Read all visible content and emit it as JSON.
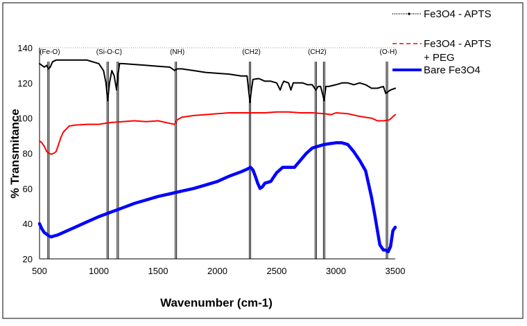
{
  "chart_data": {
    "type": "line",
    "title": "",
    "xlabel": "Wavenumber (cm-1)",
    "ylabel": "% Transmitance",
    "xlim": [
      500,
      3500
    ],
    "ylim": [
      20,
      140
    ],
    "x_ticks": [
      "500",
      "1000",
      "1500",
      "2000",
      "2500",
      "3000",
      "3500"
    ],
    "y_ticks": [
      "20",
      "40",
      "60",
      "80",
      "100",
      "120",
      "140"
    ],
    "grid": false,
    "legend_position": "top-right",
    "series": [
      {
        "name": "Fe3O4 - APTS",
        "color": "#000000",
        "style": "dotted-thin",
        "x": [
          500,
          520,
          540,
          560,
          575,
          590,
          610,
          640,
          700,
          800,
          900,
          1000,
          1040,
          1060,
          1075,
          1090,
          1110,
          1130,
          1140,
          1150,
          1160,
          1175,
          1200,
          1300,
          1400,
          1500,
          1600,
          1640,
          1660,
          1700,
          1800,
          1900,
          2000,
          2100,
          2200,
          2250,
          2265,
          2275,
          2285,
          2300,
          2350,
          2400,
          2450,
          2500,
          2530,
          2545,
          2560,
          2600,
          2620,
          2640,
          2680,
          2720,
          2760,
          2800,
          2830,
          2850,
          2870,
          2890,
          2900,
          2915,
          2940,
          3000,
          3050,
          3100,
          3150,
          3200,
          3250,
          3300,
          3350,
          3400,
          3420,
          3440,
          3460,
          3500
        ],
        "y": [
          131,
          130,
          129,
          130,
          128,
          129,
          132,
          133,
          133,
          133,
          133,
          131,
          127,
          120,
          110,
          120,
          127,
          124,
          120,
          116,
          124,
          131,
          131,
          130.5,
          130,
          129.5,
          129,
          127,
          128,
          128,
          127,
          126,
          125.5,
          125,
          124,
          124,
          115,
          109,
          115,
          122,
          122.5,
          121,
          121,
          120,
          116,
          119,
          121,
          120,
          116,
          120,
          120,
          120,
          119,
          119,
          116,
          118,
          118,
          113,
          110,
          118,
          118,
          119,
          120,
          120,
          119,
          120,
          119,
          117,
          117,
          118,
          114,
          115,
          116,
          117
        ]
      },
      {
        "name": "Fe3O4 - APTS + PEG",
        "color": "#ff0000",
        "style": "solid",
        "x": [
          500,
          520,
          540,
          560,
          580,
          600,
          620,
          640,
          660,
          680,
          700,
          750,
          800,
          900,
          1000,
          1100,
          1200,
          1300,
          1400,
          1500,
          1600,
          1640,
          1660,
          1700,
          1800,
          1900,
          2000,
          2100,
          2200,
          2300,
          2400,
          2500,
          2600,
          2700,
          2800,
          2900,
          2960,
          3000,
          3100,
          3200,
          3300,
          3350,
          3400,
          3450,
          3500
        ],
        "y": [
          87,
          86,
          84,
          81,
          80,
          79.5,
          80,
          81,
          85,
          89,
          92,
          95.5,
          96,
          96.5,
          96.5,
          97.5,
          98,
          98.5,
          98,
          98.5,
          97,
          96.5,
          99,
          100.5,
          101.5,
          102,
          102.5,
          103,
          103,
          103,
          103,
          103.5,
          103.5,
          103,
          103,
          102.5,
          102,
          103,
          102.5,
          101,
          100,
          98.5,
          98.5,
          99,
          102
        ]
      },
      {
        "name": "Bare Fe3O4",
        "color": "#0000ff",
        "style": "solid-thick",
        "x": [
          500,
          520,
          540,
          560,
          580,
          600,
          620,
          650,
          700,
          800,
          900,
          1000,
          1100,
          1200,
          1300,
          1400,
          1500,
          1600,
          1700,
          1800,
          1900,
          2000,
          2100,
          2200,
          2250,
          2280,
          2300,
          2320,
          2340,
          2360,
          2380,
          2400,
          2450,
          2500,
          2550,
          2600,
          2650,
          2700,
          2750,
          2800,
          2850,
          2900,
          2950,
          3000,
          3050,
          3100,
          3150,
          3200,
          3250,
          3300,
          3330,
          3350,
          3370,
          3400,
          3420,
          3440,
          3460,
          3480,
          3500
        ],
        "y": [
          40,
          37,
          35,
          34,
          33,
          32.5,
          33,
          33.5,
          35,
          38,
          41,
          44,
          46.5,
          49,
          51.5,
          53.5,
          55.5,
          57,
          58.5,
          60,
          62,
          64,
          67,
          69.5,
          71,
          72,
          70.5,
          67,
          63,
          60,
          61,
          63,
          64,
          69,
          72,
          72,
          72,
          76,
          80,
          83,
          84,
          85,
          85.5,
          86,
          86,
          85,
          81,
          76,
          70,
          55,
          44,
          36,
          28,
          25,
          25,
          24,
          27,
          36,
          38
        ]
      }
    ],
    "annotations": [
      {
        "label": "(Fe-O)",
        "x": 575,
        "line_bottom": 20
      },
      {
        "label": "(Si-O-C)",
        "x": 1075,
        "line_bottom": 20
      },
      {
        "label": "(NH)",
        "x": 1650,
        "line_bottom": 20
      },
      {
        "label": "(CH2)",
        "x": 2275,
        "line_bottom": 20
      },
      {
        "label": "(CH2)",
        "x": 2830,
        "line_bottom": 20
      },
      {
        "label": "(O-H)",
        "x": 3430,
        "line_bottom": 20
      }
    ],
    "extra_marker_lines": [
      1160,
      2900
    ]
  }
}
